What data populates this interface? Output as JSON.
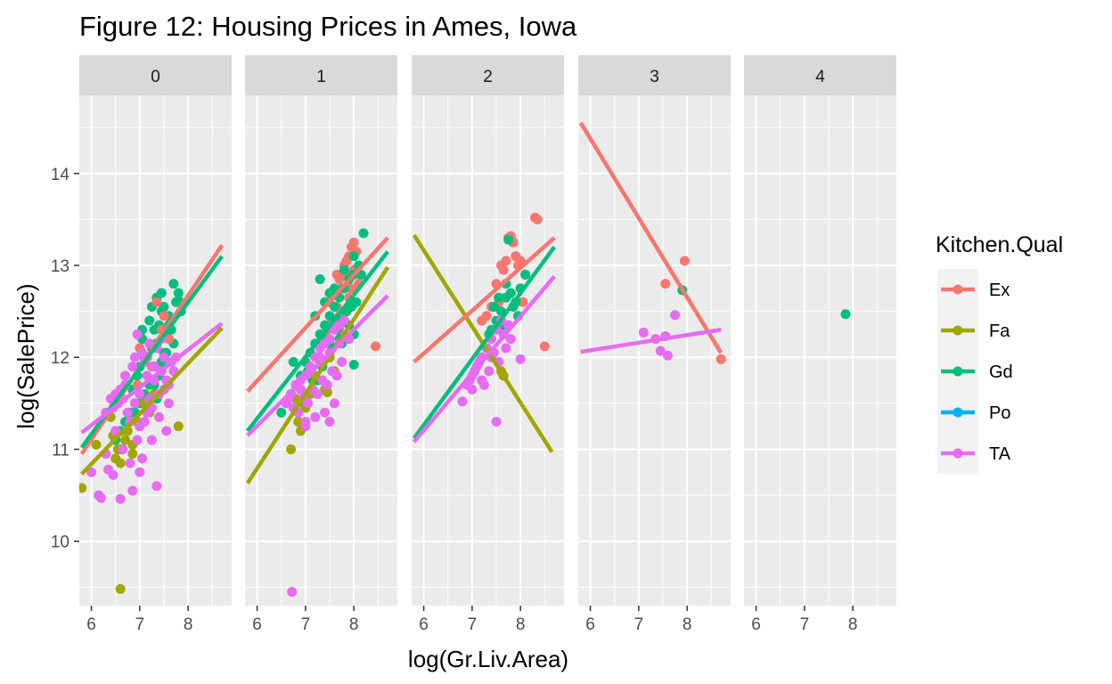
{
  "chart_data": {
    "type": "scatter",
    "title": "Figure 12: Housing Prices in Ames, Iowa",
    "xlabel": "log(Gr.Liv.Area)",
    "ylabel": "log(SalePrice)",
    "facets": [
      "0",
      "1",
      "2",
      "3",
      "4"
    ],
    "xlim": [
      5.75,
      8.9
    ],
    "ylim": [
      9.3,
      14.85
    ],
    "xticks": [
      6,
      7,
      8
    ],
    "yticks": [
      10,
      11,
      12,
      13,
      14
    ],
    "grid": true,
    "legend": {
      "title": "Kitchen.Qual",
      "position": "right",
      "entries": [
        {
          "name": "Ex",
          "color": "#F8766D"
        },
        {
          "name": "Fa",
          "color": "#A3A500"
        },
        {
          "name": "Gd",
          "color": "#00BF7D"
        },
        {
          "name": "Po",
          "color": "#00B0F6"
        },
        {
          "name": "TA",
          "color": "#E76BF3"
        }
      ]
    },
    "panels": [
      {
        "facet": "0",
        "fit_lines": [
          {
            "series": "Ex",
            "x": [
              5.8,
              8.7
            ],
            "y": [
              10.95,
              13.22
            ]
          },
          {
            "series": "Gd",
            "x": [
              5.8,
              8.7
            ],
            "y": [
              11.02,
              13.1
            ]
          },
          {
            "series": "Fa",
            "x": [
              5.8,
              8.7
            ],
            "y": [
              10.73,
              12.32
            ]
          },
          {
            "series": "TA",
            "x": [
              5.8,
              8.7
            ],
            "y": [
              11.18,
              12.37
            ]
          }
        ],
        "points": [
          {
            "series": "Gd",
            "x": [
              7.05,
              7.2,
              7.35,
              7.5,
              7.7,
              7.8,
              7.1,
              7.3,
              7.45,
              7.6,
              7.0,
              7.25,
              7.4,
              7.55,
              7.75,
              6.95,
              7.15,
              7.35,
              7.65,
              7.85,
              7.0,
              7.3,
              7.5,
              6.9,
              7.2,
              7.45,
              6.8,
              7.1,
              7.4,
              6.7,
              7.0,
              7.3,
              6.6,
              6.9,
              7.2,
              6.5,
              6.8,
              7.6,
              7.7,
              7.25,
              7.05,
              6.85,
              7.35,
              7.55,
              7.15,
              6.6,
              7.45,
              7.8
            ],
            "y": [
              12.2,
              12.4,
              12.65,
              12.55,
              12.8,
              12.7,
              12.0,
              12.3,
              12.5,
              12.45,
              11.9,
              12.1,
              12.35,
              12.25,
              12.6,
              11.8,
              12.0,
              12.15,
              12.3,
              12.5,
              11.6,
              11.9,
              12.05,
              11.5,
              11.7,
              11.95,
              11.4,
              11.6,
              11.8,
              11.3,
              11.5,
              11.7,
              11.2,
              11.4,
              11.55,
              11.1,
              11.3,
              12.35,
              12.15,
              12.55,
              12.3,
              11.65,
              11.55,
              12.05,
              11.45,
              11.0,
              12.7,
              12.62
            ]
          },
          {
            "series": "Ex",
            "x": [
              7.0,
              7.35,
              7.45,
              7.6,
              7.25,
              7.5,
              6.95,
              7.15
            ],
            "y": [
              12.1,
              12.6,
              12.3,
              12.2,
              11.9,
              12.45,
              11.7,
              12.0
            ]
          },
          {
            "series": "Fa",
            "x": [
              5.8,
              6.1,
              6.3,
              6.4,
              6.55,
              6.6,
              6.7,
              6.75,
              6.85,
              6.95,
              7.1,
              7.2,
              6.5,
              6.6,
              7.8,
              6.45,
              7.3,
              6.85
            ],
            "y": [
              10.58,
              11.05,
              10.95,
              11.35,
              11.0,
              9.48,
              11.1,
              11.2,
              11.05,
              11.3,
              11.5,
              11.4,
              10.9,
              10.85,
              11.25,
              11.15,
              11.6,
              10.95
            ]
          },
          {
            "series": "TA",
            "x": [
              6.0,
              6.2,
              6.3,
              6.45,
              6.5,
              6.6,
              6.65,
              6.75,
              6.8,
              6.9,
              6.95,
              7.0,
              7.1,
              7.15,
              7.25,
              7.3,
              7.4,
              7.5,
              7.6,
              7.7,
              6.55,
              6.7,
              6.85,
              7.05,
              7.2,
              7.35,
              7.45,
              7.55,
              7.65,
              7.75,
              6.4,
              6.6,
              6.8,
              7.0,
              7.2,
              7.4,
              6.3,
              6.5,
              6.7,
              6.9,
              7.1,
              7.3,
              7.5,
              7.0,
              7.6,
              7.35,
              7.55,
              6.15,
              6.35,
              6.45,
              6.65,
              6.85,
              7.05,
              7.25,
              6.95,
              7.15,
              7.45
            ],
            "y": [
              10.75,
              10.47,
              10.95,
              10.72,
              11.2,
              10.46,
              11.0,
              11.4,
              10.85,
              11.5,
              11.1,
              11.6,
              11.3,
              11.8,
              11.45,
              11.9,
              11.6,
              12.0,
              11.7,
              11.85,
              11.5,
              11.7,
              11.9,
              12.05,
              12.15,
              12.1,
              12.2,
              11.75,
              11.95,
              12.0,
              11.55,
              11.65,
              11.3,
              11.25,
              11.55,
              11.35,
              11.4,
              11.6,
              11.8,
              12.0,
              11.95,
              11.75,
              11.65,
              10.75,
              11.5,
              10.6,
              11.2,
              10.5,
              10.78,
              11.45,
              11.55,
              10.55,
              10.9,
              11.1,
              12.25,
              11.4,
              11.85
            ]
          }
        ]
      },
      {
        "facet": "1",
        "fit_lines": [
          {
            "series": "Ex",
            "x": [
              5.8,
              8.7
            ],
            "y": [
              11.63,
              13.3
            ]
          },
          {
            "series": "Gd",
            "x": [
              5.8,
              8.7
            ],
            "y": [
              11.2,
              13.15
            ]
          },
          {
            "series": "Fa",
            "x": [
              5.8,
              8.7
            ],
            "y": [
              10.63,
              12.98
            ]
          },
          {
            "series": "TA",
            "x": [
              5.8,
              8.7
            ],
            "y": [
              11.15,
              12.67
            ]
          }
        ],
        "points": [
          {
            "series": "Ex",
            "x": [
              7.5,
              7.6,
              7.7,
              7.8,
              7.9,
              7.95,
              8.0,
              8.05,
              7.55,
              7.65,
              7.75,
              7.85,
              7.45,
              7.7,
              7.9,
              8.1,
              7.35,
              7.6,
              7.8,
              8.0,
              7.5,
              7.7,
              7.95,
              8.45,
              7.65,
              7.85
            ],
            "y": [
              12.6,
              12.7,
              12.85,
              13.0,
              13.1,
              13.2,
              13.25,
              13.15,
              12.4,
              12.55,
              12.75,
              12.9,
              12.3,
              12.45,
              12.65,
              12.8,
              12.2,
              12.35,
              12.5,
              12.95,
              12.15,
              12.3,
              12.75,
              12.12,
              12.9,
              13.05
            ]
          },
          {
            "series": "Gd",
            "x": [
              6.5,
              6.7,
              6.9,
              7.0,
              7.1,
              7.2,
              7.3,
              7.4,
              7.5,
              7.6,
              7.7,
              7.8,
              7.9,
              8.0,
              8.1,
              8.2,
              6.8,
              7.05,
              7.25,
              7.45,
              7.65,
              7.85,
              8.05,
              6.95,
              7.15,
              7.35,
              7.55,
              7.75,
              7.95,
              7.2,
              7.4,
              7.6,
              7.8,
              8.0,
              7.3,
              7.5,
              7.7,
              7.9,
              8.0,
              6.75,
              7.0,
              7.25,
              7.5,
              7.75,
              8.0,
              8.15
            ],
            "y": [
              11.4,
              11.6,
              11.8,
              11.95,
              12.05,
              12.15,
              12.25,
              12.35,
              12.45,
              12.55,
              12.65,
              12.75,
              12.85,
              12.9,
              13.0,
              13.35,
              11.7,
              11.85,
              12.0,
              12.2,
              12.3,
              12.5,
              12.6,
              11.5,
              11.75,
              11.9,
              12.1,
              12.4,
              12.55,
              12.45,
              12.6,
              12.75,
              12.95,
              13.1,
              12.85,
              12.7,
              12.2,
              12.35,
              11.92,
              11.95,
              11.6,
              11.75,
              12.0,
              12.15,
              12.25,
              12.9
            ]
          },
          {
            "series": "Fa",
            "x": [
              6.7,
              6.85,
              7.0,
              7.2,
              7.4,
              7.6,
              6.8,
              7.1,
              7.5,
              7.3,
              6.9,
              7.45
            ],
            "y": [
              11.0,
              11.3,
              11.45,
              11.8,
              11.65,
              11.85,
              11.55,
              11.6,
              12.0,
              11.95,
              11.2,
              11.62
            ]
          },
          {
            "series": "TA",
            "x": [
              6.6,
              6.7,
              6.8,
              6.9,
              7.0,
              7.1,
              7.2,
              7.3,
              7.4,
              7.5,
              7.6,
              7.7,
              7.8,
              6.75,
              6.95,
              7.15,
              7.35,
              7.55,
              7.75,
              6.85,
              7.05,
              7.25,
              7.45,
              7.65,
              6.65,
              6.9,
              7.1,
              7.3,
              7.5,
              7.7,
              7.9,
              6.72,
              7.0,
              7.2,
              7.4,
              7.6,
              7.5,
              7.0
            ],
            "y": [
              11.5,
              11.6,
              11.7,
              11.75,
              11.8,
              11.9,
              12.0,
              12.1,
              12.15,
              12.2,
              12.3,
              12.35,
              12.4,
              11.45,
              11.55,
              11.65,
              11.75,
              11.85,
              11.95,
              11.4,
              11.5,
              11.6,
              11.7,
              11.8,
              11.55,
              11.65,
              11.85,
              12.0,
              12.05,
              12.15,
              12.2,
              9.45,
              11.3,
              11.35,
              11.4,
              11.5,
              11.3,
              11.25
            ]
          }
        ]
      },
      {
        "facet": "2",
        "fit_lines": [
          {
            "series": "Fa",
            "x": [
              5.8,
              8.65
            ],
            "y": [
              13.33,
              10.97
            ]
          },
          {
            "series": "Ex",
            "x": [
              5.8,
              8.7
            ],
            "y": [
              11.95,
              13.3
            ]
          },
          {
            "series": "Gd",
            "x": [
              5.8,
              8.7
            ],
            "y": [
              11.12,
              13.2
            ]
          },
          {
            "series": "TA",
            "x": [
              5.8,
              8.7
            ],
            "y": [
              11.08,
              12.88
            ]
          }
        ],
        "points": [
          {
            "series": "Ex",
            "x": [
              7.2,
              7.4,
              7.5,
              7.6,
              7.7,
              7.75,
              7.8,
              7.85,
              7.9,
              8.0,
              8.1,
              8.3,
              8.35,
              8.5,
              7.65,
              7.95,
              8.05,
              7.55,
              7.3
            ],
            "y": [
              12.4,
              12.55,
              12.8,
              13.0,
              13.05,
              13.3,
              13.32,
              13.25,
              13.1,
              13.05,
              12.9,
              13.52,
              13.5,
              12.12,
              12.95,
              13.0,
              12.6,
              12.6,
              12.45
            ]
          },
          {
            "series": "Gd",
            "x": [
              7.3,
              7.4,
              7.5,
              7.6,
              7.7,
              7.75,
              7.8,
              7.9,
              8.0,
              8.1,
              7.2,
              7.45,
              7.55,
              7.65,
              7.85,
              7.35,
              7.95,
              7.7
            ],
            "y": [
              12.1,
              12.3,
              12.4,
              12.5,
              12.65,
              13.28,
              12.7,
              12.6,
              12.75,
              12.9,
              12.0,
              12.55,
              12.65,
              12.35,
              12.55,
              12.25,
              12.45,
              12.8
            ]
          },
          {
            "series": "Fa",
            "x": [
              7.6,
              7.65
            ],
            "y": [
              11.85,
              11.8
            ]
          },
          {
            "series": "TA",
            "x": [
              6.8,
              6.9,
              7.0,
              7.1,
              7.2,
              7.3,
              7.4,
              7.5,
              7.6,
              7.7,
              7.8,
              8.0,
              6.95,
              7.05,
              7.15,
              7.25,
              7.35,
              7.45,
              7.55,
              7.65,
              7.75,
              7.5,
              7.0,
              7.2,
              7.4
            ],
            "y": [
              11.52,
              11.7,
              11.8,
              11.9,
              12.0,
              12.1,
              12.2,
              12.3,
              12.4,
              12.1,
              12.2,
              11.98,
              11.75,
              11.85,
              11.95,
              11.7,
              11.85,
              12.05,
              11.95,
              12.25,
              12.35,
              11.3,
              11.65,
              11.75,
              12.0
            ]
          }
        ]
      },
      {
        "facet": "3",
        "fit_lines": [
          {
            "series": "Ex",
            "x": [
              5.8,
              8.7
            ],
            "y": [
              14.55,
              12.05
            ]
          },
          {
            "series": "TA",
            "x": [
              5.8,
              8.7
            ],
            "y": [
              12.06,
              12.3
            ]
          }
        ],
        "points": [
          {
            "series": "Ex",
            "x": [
              7.55,
              7.95,
              8.7
            ],
            "y": [
              12.8,
              13.05,
              11.98
            ]
          },
          {
            "series": "Gd",
            "x": [
              7.9
            ],
            "y": [
              12.73
            ]
          },
          {
            "series": "TA",
            "x": [
              7.1,
              7.35,
              7.45,
              7.55,
              7.6,
              7.75
            ],
            "y": [
              12.27,
              12.2,
              12.07,
              12.23,
              12.02,
              12.46
            ]
          }
        ]
      },
      {
        "facet": "4",
        "fit_lines": [],
        "points": [
          {
            "series": "Gd",
            "x": [
              7.85
            ],
            "y": [
              12.47
            ]
          }
        ]
      }
    ]
  }
}
